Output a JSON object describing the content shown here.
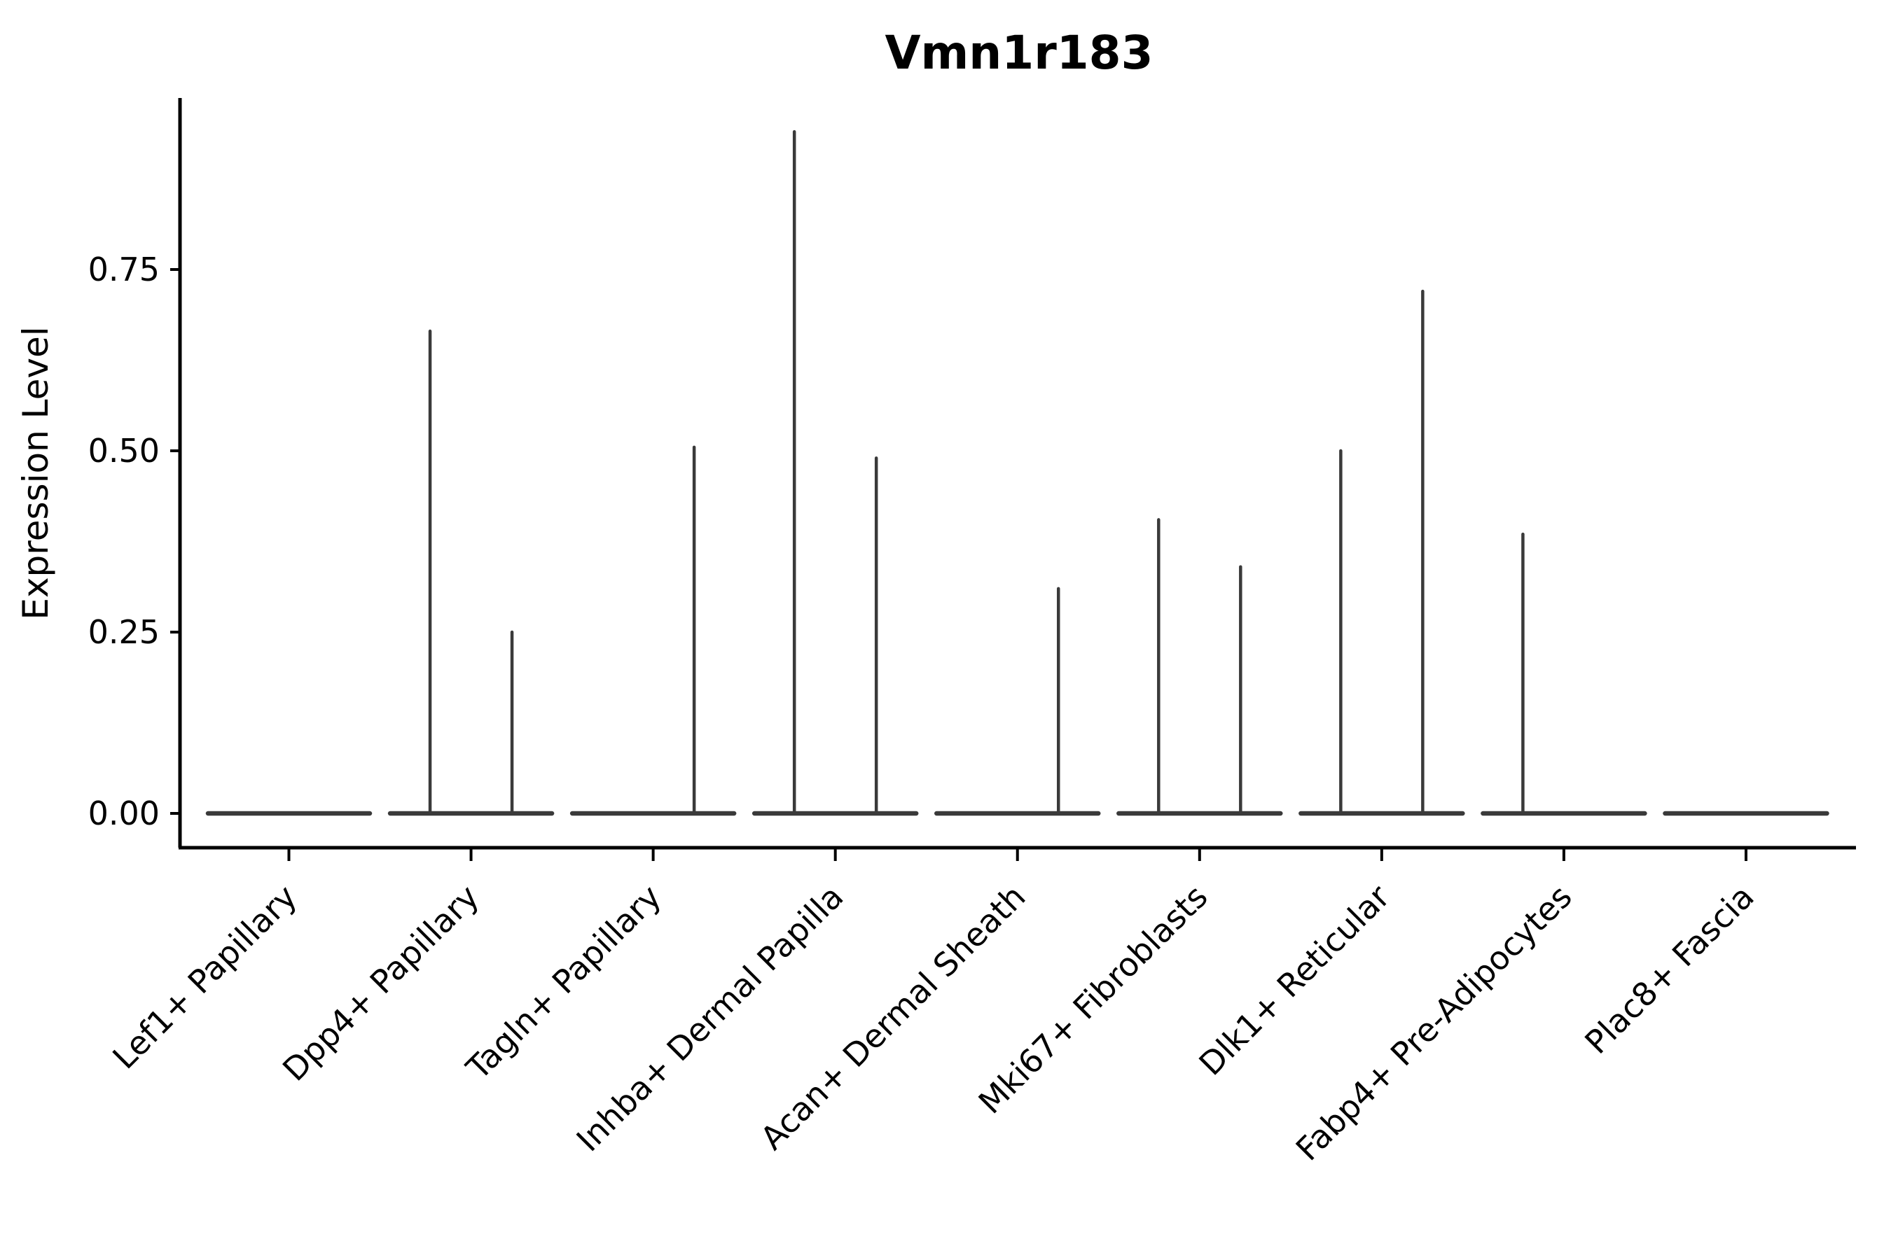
{
  "title": "Vmn1r183",
  "y_axis": {
    "label": "Expression Level",
    "tick_labels": [
      "0.00",
      "0.25",
      "0.50",
      "0.75"
    ],
    "tick_values": [
      0,
      0.25,
      0.5,
      0.75
    ]
  },
  "chart_data": {
    "type": "violin",
    "title": "Vmn1r183",
    "xlabel": "",
    "ylabel": "Expression Level",
    "ylim": [
      0,
      0.99
    ],
    "grid": false,
    "legend_position": "none",
    "categories": [
      "Lef1+ Papillary",
      "Dpp4+ Papillary",
      "Tagln+ Papillary",
      "Inhba+ Dermal Papilla",
      "Acan+ Dermal Sheath",
      "Mki67+ Fibroblasts",
      "Dlk1+ Reticular",
      "Fabp4+ Pre-Adipocytes",
      "Plac8+ Fascia"
    ],
    "series": [
      {
        "name": "left-sub-violin-max-expression",
        "values": [
          0,
          0.665,
          0,
          0.94,
          0,
          0.405,
          0.5,
          0.385,
          0
        ]
      },
      {
        "name": "right-sub-violin-max-expression",
        "values": [
          0,
          0.25,
          0.505,
          0.49,
          0.31,
          0.34,
          0.72,
          0,
          0
        ]
      }
    ]
  },
  "style": {
    "violin_color": "#3a3a3a",
    "axis_color": "#000000",
    "background": "#ffffff"
  }
}
